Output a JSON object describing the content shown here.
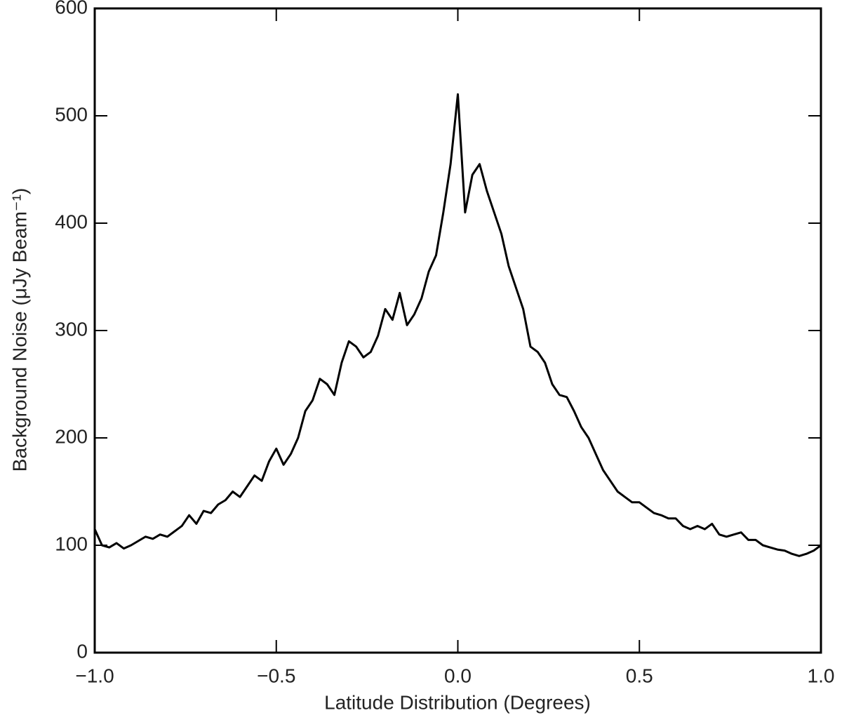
{
  "chart_data": {
    "type": "line",
    "x_label": "Latitude Distribution (Degrees)",
    "y_label": "Background Noise (μJy Beam⁻¹)",
    "x": [
      -1.0,
      -0.98,
      -0.96,
      -0.94,
      -0.92,
      -0.9,
      -0.88,
      -0.86,
      -0.84,
      -0.82,
      -0.8,
      -0.78,
      -0.76,
      -0.74,
      -0.72,
      -0.7,
      -0.68,
      -0.66,
      -0.64,
      -0.62,
      -0.6,
      -0.58,
      -0.56,
      -0.54,
      -0.52,
      -0.5,
      -0.48,
      -0.46,
      -0.44,
      -0.42,
      -0.4,
      -0.38,
      -0.36,
      -0.34,
      -0.32,
      -0.3,
      -0.28,
      -0.26,
      -0.24,
      -0.22,
      -0.2,
      -0.18,
      -0.16,
      -0.14,
      -0.12,
      -0.1,
      -0.08,
      -0.06,
      -0.04,
      -0.02,
      0.0,
      0.02,
      0.04,
      0.06,
      0.08,
      0.1,
      0.12,
      0.14,
      0.16,
      0.18,
      0.2,
      0.22,
      0.24,
      0.26,
      0.28,
      0.3,
      0.32,
      0.34,
      0.36,
      0.38,
      0.4,
      0.42,
      0.44,
      0.46,
      0.48,
      0.5,
      0.52,
      0.54,
      0.56,
      0.58,
      0.6,
      0.62,
      0.64,
      0.66,
      0.68,
      0.7,
      0.72,
      0.74,
      0.76,
      0.78,
      0.8,
      0.82,
      0.84,
      0.86,
      0.88,
      0.9,
      0.92,
      0.94,
      0.96,
      0.98,
      1.0
    ],
    "values": [
      115,
      100,
      98,
      102,
      97,
      100,
      104,
      108,
      106,
      110,
      108,
      113,
      118,
      128,
      120,
      132,
      130,
      138,
      142,
      150,
      145,
      155,
      165,
      160,
      178,
      190,
      175,
      185,
      200,
      225,
      235,
      255,
      250,
      240,
      270,
      290,
      285,
      275,
      280,
      295,
      320,
      310,
      335,
      305,
      315,
      330,
      355,
      370,
      410,
      455,
      520,
      410,
      445,
      455,
      430,
      410,
      390,
      360,
      340,
      320,
      285,
      280,
      270,
      250,
      240,
      238,
      225,
      210,
      200,
      185,
      170,
      160,
      150,
      145,
      140,
      140,
      135,
      130,
      128,
      125,
      125,
      118,
      115,
      118,
      115,
      120,
      110,
      108,
      110,
      112,
      105,
      105,
      100,
      98,
      96,
      95,
      92,
      90,
      92,
      95,
      100
    ],
    "color": "#000000",
    "xlim": [
      -1,
      1
    ],
    "xticks": [
      {
        "value": -1,
        "label": "−1.0"
      },
      {
        "value": -0.5,
        "label": "−0.5"
      },
      {
        "value": 0,
        "label": "0.0"
      },
      {
        "value": 0.5,
        "label": "0.5"
      },
      {
        "value": 1,
        "label": "1.0"
      }
    ],
    "ylim": [
      0,
      600
    ],
    "yticks": [
      0,
      100,
      200,
      300,
      400,
      500,
      600
    ]
  }
}
